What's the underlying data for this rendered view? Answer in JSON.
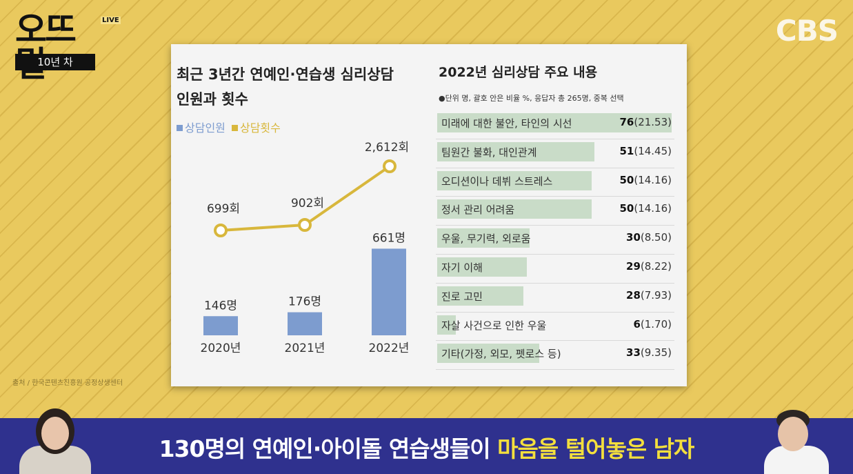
{
  "brand": {
    "logo": "오뜨밀",
    "live": "LIVE",
    "tagline": "10년 차",
    "channel": "CBS"
  },
  "left": {
    "title_line1": "최근 3년간 연예인·연습생 심리상담",
    "title_line2": "인원과 횟수",
    "legend": [
      {
        "label": "상담인원",
        "color": "#7d9ccf"
      },
      {
        "label": "상담횟수",
        "color": "#d8b73c"
      }
    ]
  },
  "chart_data": [
    {
      "type": "bar+line",
      "categories": [
        "2020년",
        "2021년",
        "2022년"
      ],
      "series": [
        {
          "name": "상담인원",
          "type": "bar",
          "values": [
            146,
            176,
            661
          ],
          "labels": [
            "146명",
            "176명",
            "661명"
          ],
          "color": "#7d9ccf"
        },
        {
          "name": "상담횟수",
          "type": "line",
          "values": [
            699,
            902,
            2612
          ],
          "labels": [
            "699회",
            "902회",
            "2,612회"
          ],
          "color": "#d8b73c"
        }
      ]
    },
    {
      "type": "bar",
      "title": "2022년 심리상담 주요 내용",
      "note": "●단위 명, 괄호 안은 비율 %, 응답자 총 265명, 중복 선택",
      "categories": [
        "미래에 대한 불안, 타인의 시선",
        "팀원간 불화, 대인관계",
        "오디션이나 데뷔 스트레스",
        "정서 관리 어려움",
        "우울, 무기력, 외로움",
        "자기 이해",
        "진로 고민",
        "자살 사건으로 인한 우울",
        "기타(가정, 외모, 펫로스 등)"
      ],
      "values": [
        76,
        51,
        50,
        50,
        30,
        29,
        28,
        6,
        33
      ],
      "percents": [
        "(21.53)",
        "(14.45)",
        "(14.16)",
        "(14.16)",
        "(8.50)",
        "(8.22)",
        "(7.93)",
        "(1.70)",
        "(9.35)"
      ],
      "color": "#c9dcc8"
    }
  ],
  "source": "출처 / 한국콘텐츠진흥원 공정상생센터",
  "caption": {
    "part1": "130명의 연예인·아이돌 연습생들이 ",
    "highlight": "마음을 털어놓은 남자"
  }
}
